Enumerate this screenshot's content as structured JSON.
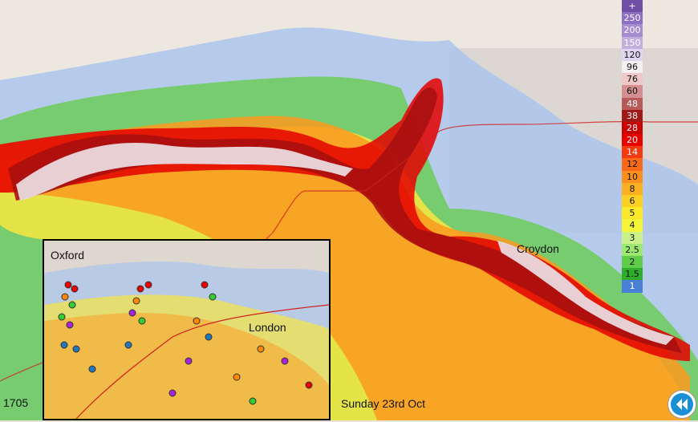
{
  "map": {
    "labels": {
      "croydon": "Croydon",
      "oxford": "Oxford",
      "london": "London"
    },
    "timestamp": "1705",
    "date": "Sunday 23rd Oct"
  },
  "legend": {
    "items": [
      {
        "label": "+",
        "color": "#6f4fa5"
      },
      {
        "label": "250",
        "color": "#8e6fc1"
      },
      {
        "label": "200",
        "color": "#a58dcf"
      },
      {
        "label": "150",
        "color": "#c0b0dd"
      },
      {
        "label": "120",
        "color": "#ddd6ee"
      },
      {
        "label": "96",
        "color": "#f4f0f0"
      },
      {
        "label": "76",
        "color": "#eec8c8"
      },
      {
        "label": "60",
        "color": "#d49090"
      },
      {
        "label": "48",
        "color": "#b65a5a"
      },
      {
        "label": "38",
        "color": "#a01818"
      },
      {
        "label": "28",
        "color": "#c80000"
      },
      {
        "label": "20",
        "color": "#e60000"
      },
      {
        "label": "14",
        "color": "#f43a10"
      },
      {
        "label": "12",
        "color": "#f86a1a"
      },
      {
        "label": "10",
        "color": "#fb8f1f"
      },
      {
        "label": "8",
        "color": "#fbb020"
      },
      {
        "label": "6",
        "color": "#fbd022"
      },
      {
        "label": "5",
        "color": "#fae82a"
      },
      {
        "label": "4",
        "color": "#f5f53a"
      },
      {
        "label": "3",
        "color": "#c9f28a"
      },
      {
        "label": "2.5",
        "color": "#9de870"
      },
      {
        "label": "2",
        "color": "#5fcc4a"
      },
      {
        "label": "1.5",
        "color": "#2fae2e"
      },
      {
        "label": "1",
        "color": "#4a7fd6"
      }
    ]
  },
  "colors": {
    "boundary": "#d02020",
    "rewind": "#1a8fd6"
  },
  "icons": {
    "rewind": "rewind-icon"
  }
}
